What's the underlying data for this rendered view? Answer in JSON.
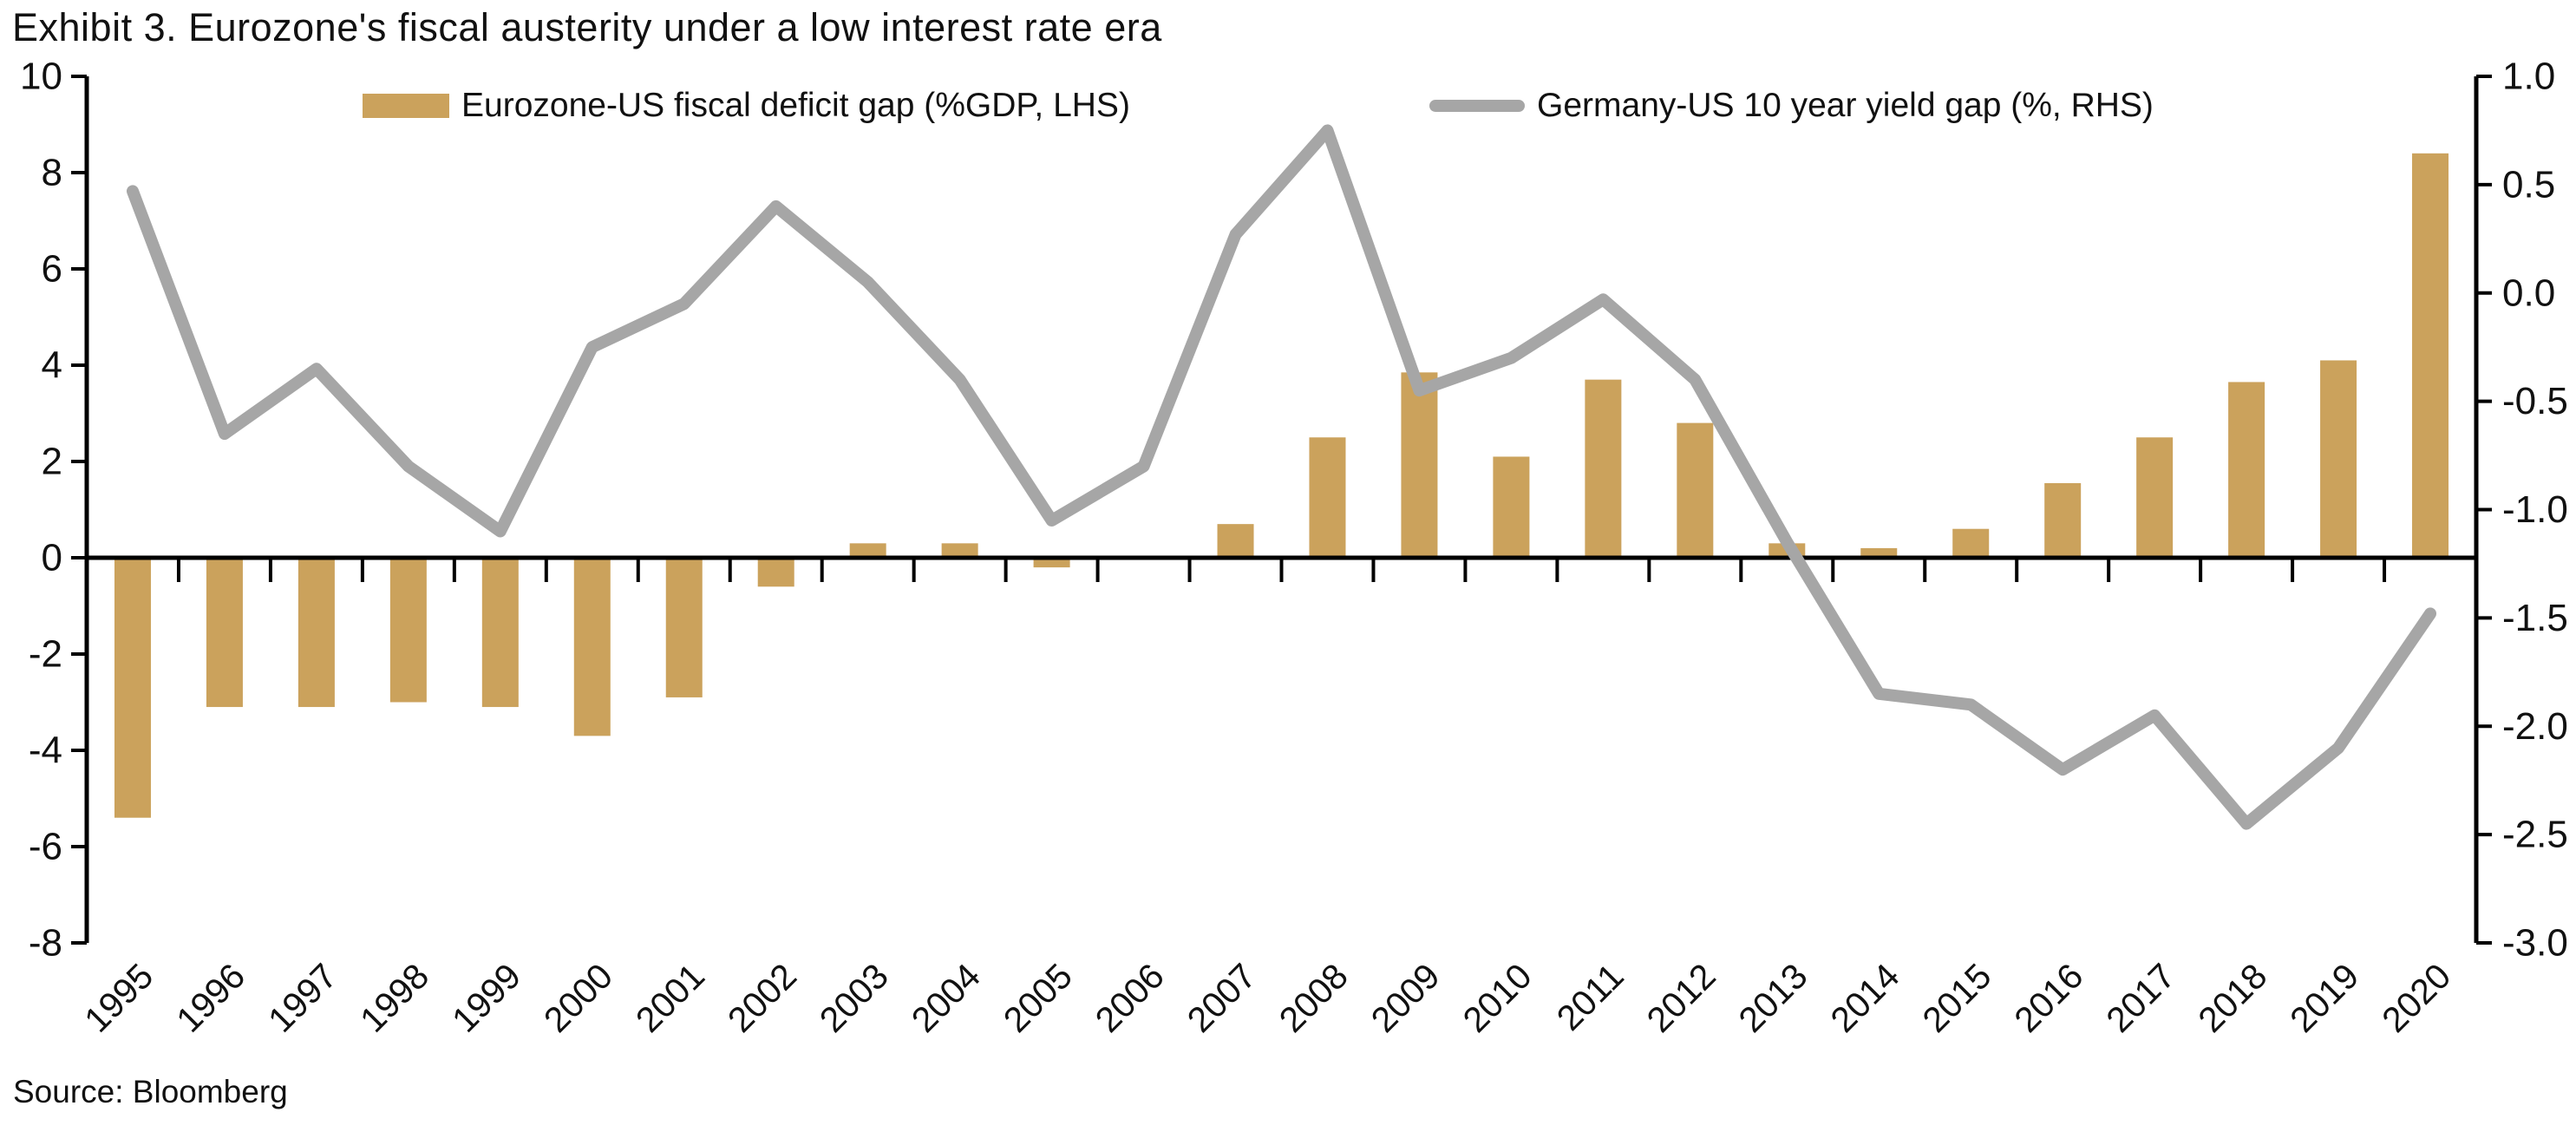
{
  "chart_data": {
    "type": "bar+line",
    "title": "Exhibit 3. Eurozone's fiscal austerity under a low interest rate era",
    "source": "Source: Bloomberg",
    "categories": [
      "1995",
      "1996",
      "1997",
      "1998",
      "1999",
      "2000",
      "2001",
      "2002",
      "2003",
      "2004",
      "2005",
      "2006",
      "2007",
      "2008",
      "2009",
      "2010",
      "2011",
      "2012",
      "2013",
      "2014",
      "2015",
      "2016",
      "2017",
      "2018",
      "2019",
      "2020"
    ],
    "series": [
      {
        "name": "Eurozone-US fiscal deficit gap (%GDP, LHS)",
        "type": "bar",
        "axis": "left",
        "color": "#CBA25C",
        "values": [
          -5.4,
          -3.1,
          -3.1,
          -3.0,
          -3.1,
          -3.7,
          -2.9,
          -0.6,
          0.3,
          0.3,
          -0.2,
          0.0,
          0.7,
          2.5,
          3.85,
          2.1,
          3.7,
          2.8,
          0.3,
          0.2,
          0.6,
          1.55,
          2.5,
          3.65,
          4.1,
          8.4
        ]
      },
      {
        "name": "Germany-US 10 year yield gap (%, RHS)",
        "type": "line",
        "axis": "right",
        "color": "#A6A6A6",
        "values": [
          0.47,
          -0.65,
          -0.35,
          -0.8,
          -1.1,
          -0.25,
          -0.05,
          0.4,
          0.05,
          -0.4,
          -1.05,
          -0.8,
          0.27,
          0.75,
          -0.45,
          -0.3,
          -0.03,
          -0.4,
          -1.15,
          -1.85,
          -1.9,
          -2.2,
          -1.95,
          -2.45,
          -2.1,
          -1.48
        ]
      }
    ],
    "left_axis": {
      "min": -8,
      "max": 10,
      "step": 2,
      "ticks": [
        {
          "label": "10",
          "value": 10
        },
        {
          "label": "8",
          "value": 8
        },
        {
          "label": "6",
          "value": 6
        },
        {
          "label": "4",
          "value": 4
        },
        {
          "label": "2",
          "value": 2
        },
        {
          "label": "0",
          "value": 0
        },
        {
          "label": "-2",
          "value": -2
        },
        {
          "label": "-4",
          "value": -4
        },
        {
          "label": "-6",
          "value": -6
        },
        {
          "label": "-8",
          "value": -8
        }
      ]
    },
    "right_axis": {
      "min": -3,
      "max": 1,
      "step": 0.5,
      "ticks": [
        {
          "label": "1.0",
          "value": 1.0
        },
        {
          "label": "0.5",
          "value": 0.5
        },
        {
          "label": "0.0",
          "value": 0.0
        },
        {
          "label": "-0.5",
          "value": -0.5
        },
        {
          "label": "-1.0",
          "value": -1.0
        },
        {
          "label": "-1.5",
          "value": -1.5
        },
        {
          "label": "-2.0",
          "value": -2.0
        },
        {
          "label": "-2.5",
          "value": -2.5
        },
        {
          "label": "-3.0",
          "value": -3.0
        }
      ]
    },
    "axis_color": "#000000",
    "text_color": "#111111",
    "legend_position": "top",
    "grid": false
  }
}
